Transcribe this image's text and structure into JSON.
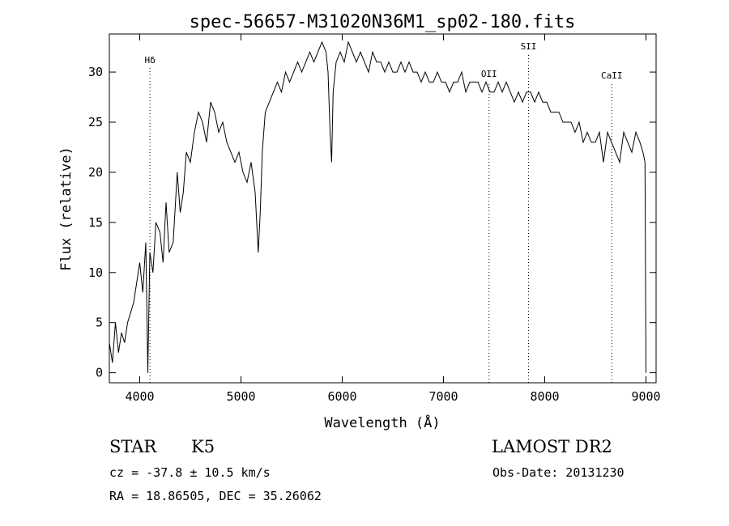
{
  "chart_data": {
    "type": "line",
    "title": "spec-56657-M31020N36M1_sp02-180.fits",
    "xlabel": "Wavelength (Å)",
    "ylabel": "Flux (relative)",
    "xlim": [
      3700,
      9100
    ],
    "ylim": [
      -1,
      33.8
    ],
    "xticks": [
      4000,
      5000,
      6000,
      7000,
      8000,
      9000
    ],
    "yticks": [
      0,
      5,
      10,
      15,
      20,
      25,
      30
    ],
    "grid": false,
    "line_color": "#000000",
    "lines": [
      {
        "name": "Hδ",
        "x": 4101
      },
      {
        "name": "OII",
        "x": 7450
      },
      {
        "name": "SII",
        "x": 7840
      },
      {
        "name": "CaII",
        "x": 8662
      }
    ],
    "series": [
      {
        "x": [
          3700,
          3730,
          3760,
          3790,
          3820,
          3850,
          3880,
          3910,
          3940,
          3970,
          4000,
          4030,
          4060,
          4080,
          4100,
          4130,
          4160,
          4200,
          4230,
          4260,
          4290,
          4330,
          4370,
          4400,
          4430,
          4460,
          4500,
          4540,
          4580,
          4620,
          4660,
          4700,
          4740,
          4780,
          4820,
          4860,
          4900,
          4940,
          4980,
          5020,
          5060,
          5100,
          5140,
          5170,
          5190,
          5210,
          5240,
          5280,
          5320,
          5360,
          5400,
          5440,
          5480,
          5520,
          5560,
          5600,
          5640,
          5680,
          5720,
          5760,
          5800,
          5840,
          5860,
          5880,
          5895,
          5910,
          5940,
          5980,
          6020,
          6060,
          6100,
          6140,
          6180,
          6220,
          6260,
          6300,
          6340,
          6380,
          6420,
          6460,
          6500,
          6540,
          6580,
          6620,
          6660,
          6700,
          6740,
          6780,
          6820,
          6860,
          6900,
          6940,
          6980,
          7020,
          7060,
          7100,
          7140,
          7180,
          7220,
          7260,
          7300,
          7340,
          7380,
          7420,
          7460,
          7500,
          7540,
          7580,
          7620,
          7660,
          7700,
          7740,
          7780,
          7820,
          7860,
          7900,
          7940,
          7980,
          8020,
          8060,
          8100,
          8140,
          8180,
          8220,
          8260,
          8300,
          8340,
          8380,
          8420,
          8460,
          8500,
          8540,
          8580,
          8620,
          8660,
          8700,
          8740,
          8780,
          8820,
          8860,
          8900,
          8940,
          8970,
          8990,
          9000
        ],
        "y": [
          3,
          1,
          5,
          2,
          4,
          3,
          5,
          6,
          7,
          9,
          11,
          8,
          13,
          0,
          12,
          10,
          15,
          14,
          11,
          17,
          12,
          13,
          20,
          16,
          18,
          22,
          21,
          24,
          26,
          25,
          23,
          27,
          26,
          24,
          25,
          23,
          22,
          21,
          22,
          20,
          19,
          21,
          18,
          12,
          16,
          22,
          26,
          27,
          28,
          29,
          28,
          30,
          29,
          30,
          31,
          30,
          31,
          32,
          31,
          32,
          33,
          32,
          30,
          24,
          21,
          28,
          31,
          32,
          31,
          33,
          32,
          31,
          32,
          31,
          30,
          32,
          31,
          31,
          30,
          31,
          30,
          30,
          31,
          30,
          31,
          30,
          30,
          29,
          30,
          29,
          29,
          30,
          29,
          29,
          28,
          29,
          29,
          30,
          28,
          29,
          29,
          29,
          28,
          29,
          28,
          28,
          29,
          28,
          29,
          28,
          27,
          28,
          27,
          28,
          28,
          27,
          28,
          27,
          27,
          26,
          26,
          26,
          25,
          25,
          25,
          24,
          25,
          23,
          24,
          23,
          23,
          24,
          21,
          24,
          23,
          22,
          21,
          24,
          23,
          22,
          24,
          23,
          22,
          21,
          0
        ]
      }
    ]
  },
  "info": {
    "object_class": "STAR",
    "subclass": "K5",
    "survey": "LAMOST DR2",
    "redshift": "cz = -37.8 ± 10.5 km/s",
    "obs_date": "Obs-Date: 20131230",
    "coords": "RA =  18.86505, DEC =  35.26062"
  }
}
